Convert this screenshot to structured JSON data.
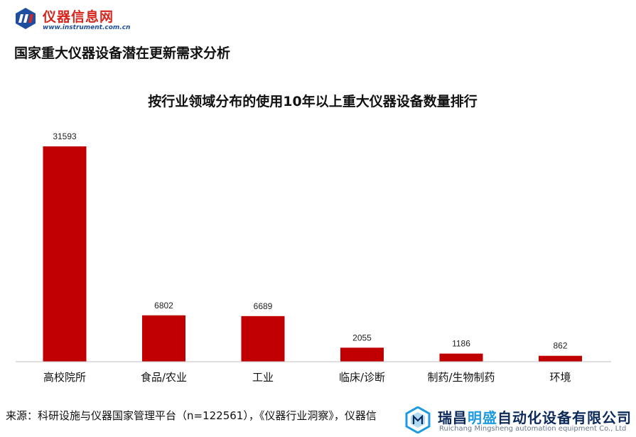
{
  "logo": {
    "name": "仪器信息网",
    "url": "www.instrument.com.cn"
  },
  "page_title": "国家重大仪器设备潜在更新需求分析",
  "source_text": "来源：科研设施与仪器国家管理平台（n=122561），《仪器行业洞察》，仪器信",
  "watermark": {
    "company_part1": "瑞昌",
    "company_highlight": "明盛",
    "company_part2": "自动化设备有限公司",
    "company_en": "Ruichang Mingsheng automation equipment Co., Ltd"
  },
  "colors": {
    "bar": "#c00000",
    "logo_red": "#d7261e",
    "logo_blue": "#1f4e9e",
    "axis": "#bfbfbf"
  },
  "chart_data": {
    "type": "bar",
    "title": "按行业领域分布的使用10年以上重大仪器设备数量排行",
    "categories": [
      "高校院所",
      "食品/农业",
      "工业",
      "临床/诊断",
      "制药/生物制药",
      "环境"
    ],
    "values": [
      31593,
      6802,
      6689,
      2055,
      1186,
      862
    ],
    "data_labels": [
      "31593",
      "6802",
      "6689",
      "2055",
      "1186",
      "862"
    ],
    "xlabel": "",
    "ylabel": "",
    "ylim": [
      0,
      31593
    ],
    "grid": false,
    "legend": "none"
  }
}
